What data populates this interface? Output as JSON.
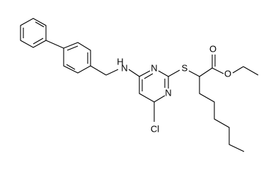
{
  "atoms": {
    "nh_h": "H",
    "nh_n": "N",
    "ring_n1": "N",
    "ring_n3": "N",
    "sulfur": "S",
    "carbonyl_o": "O",
    "ester_o": "O",
    "chlorine": "Cl"
  }
}
